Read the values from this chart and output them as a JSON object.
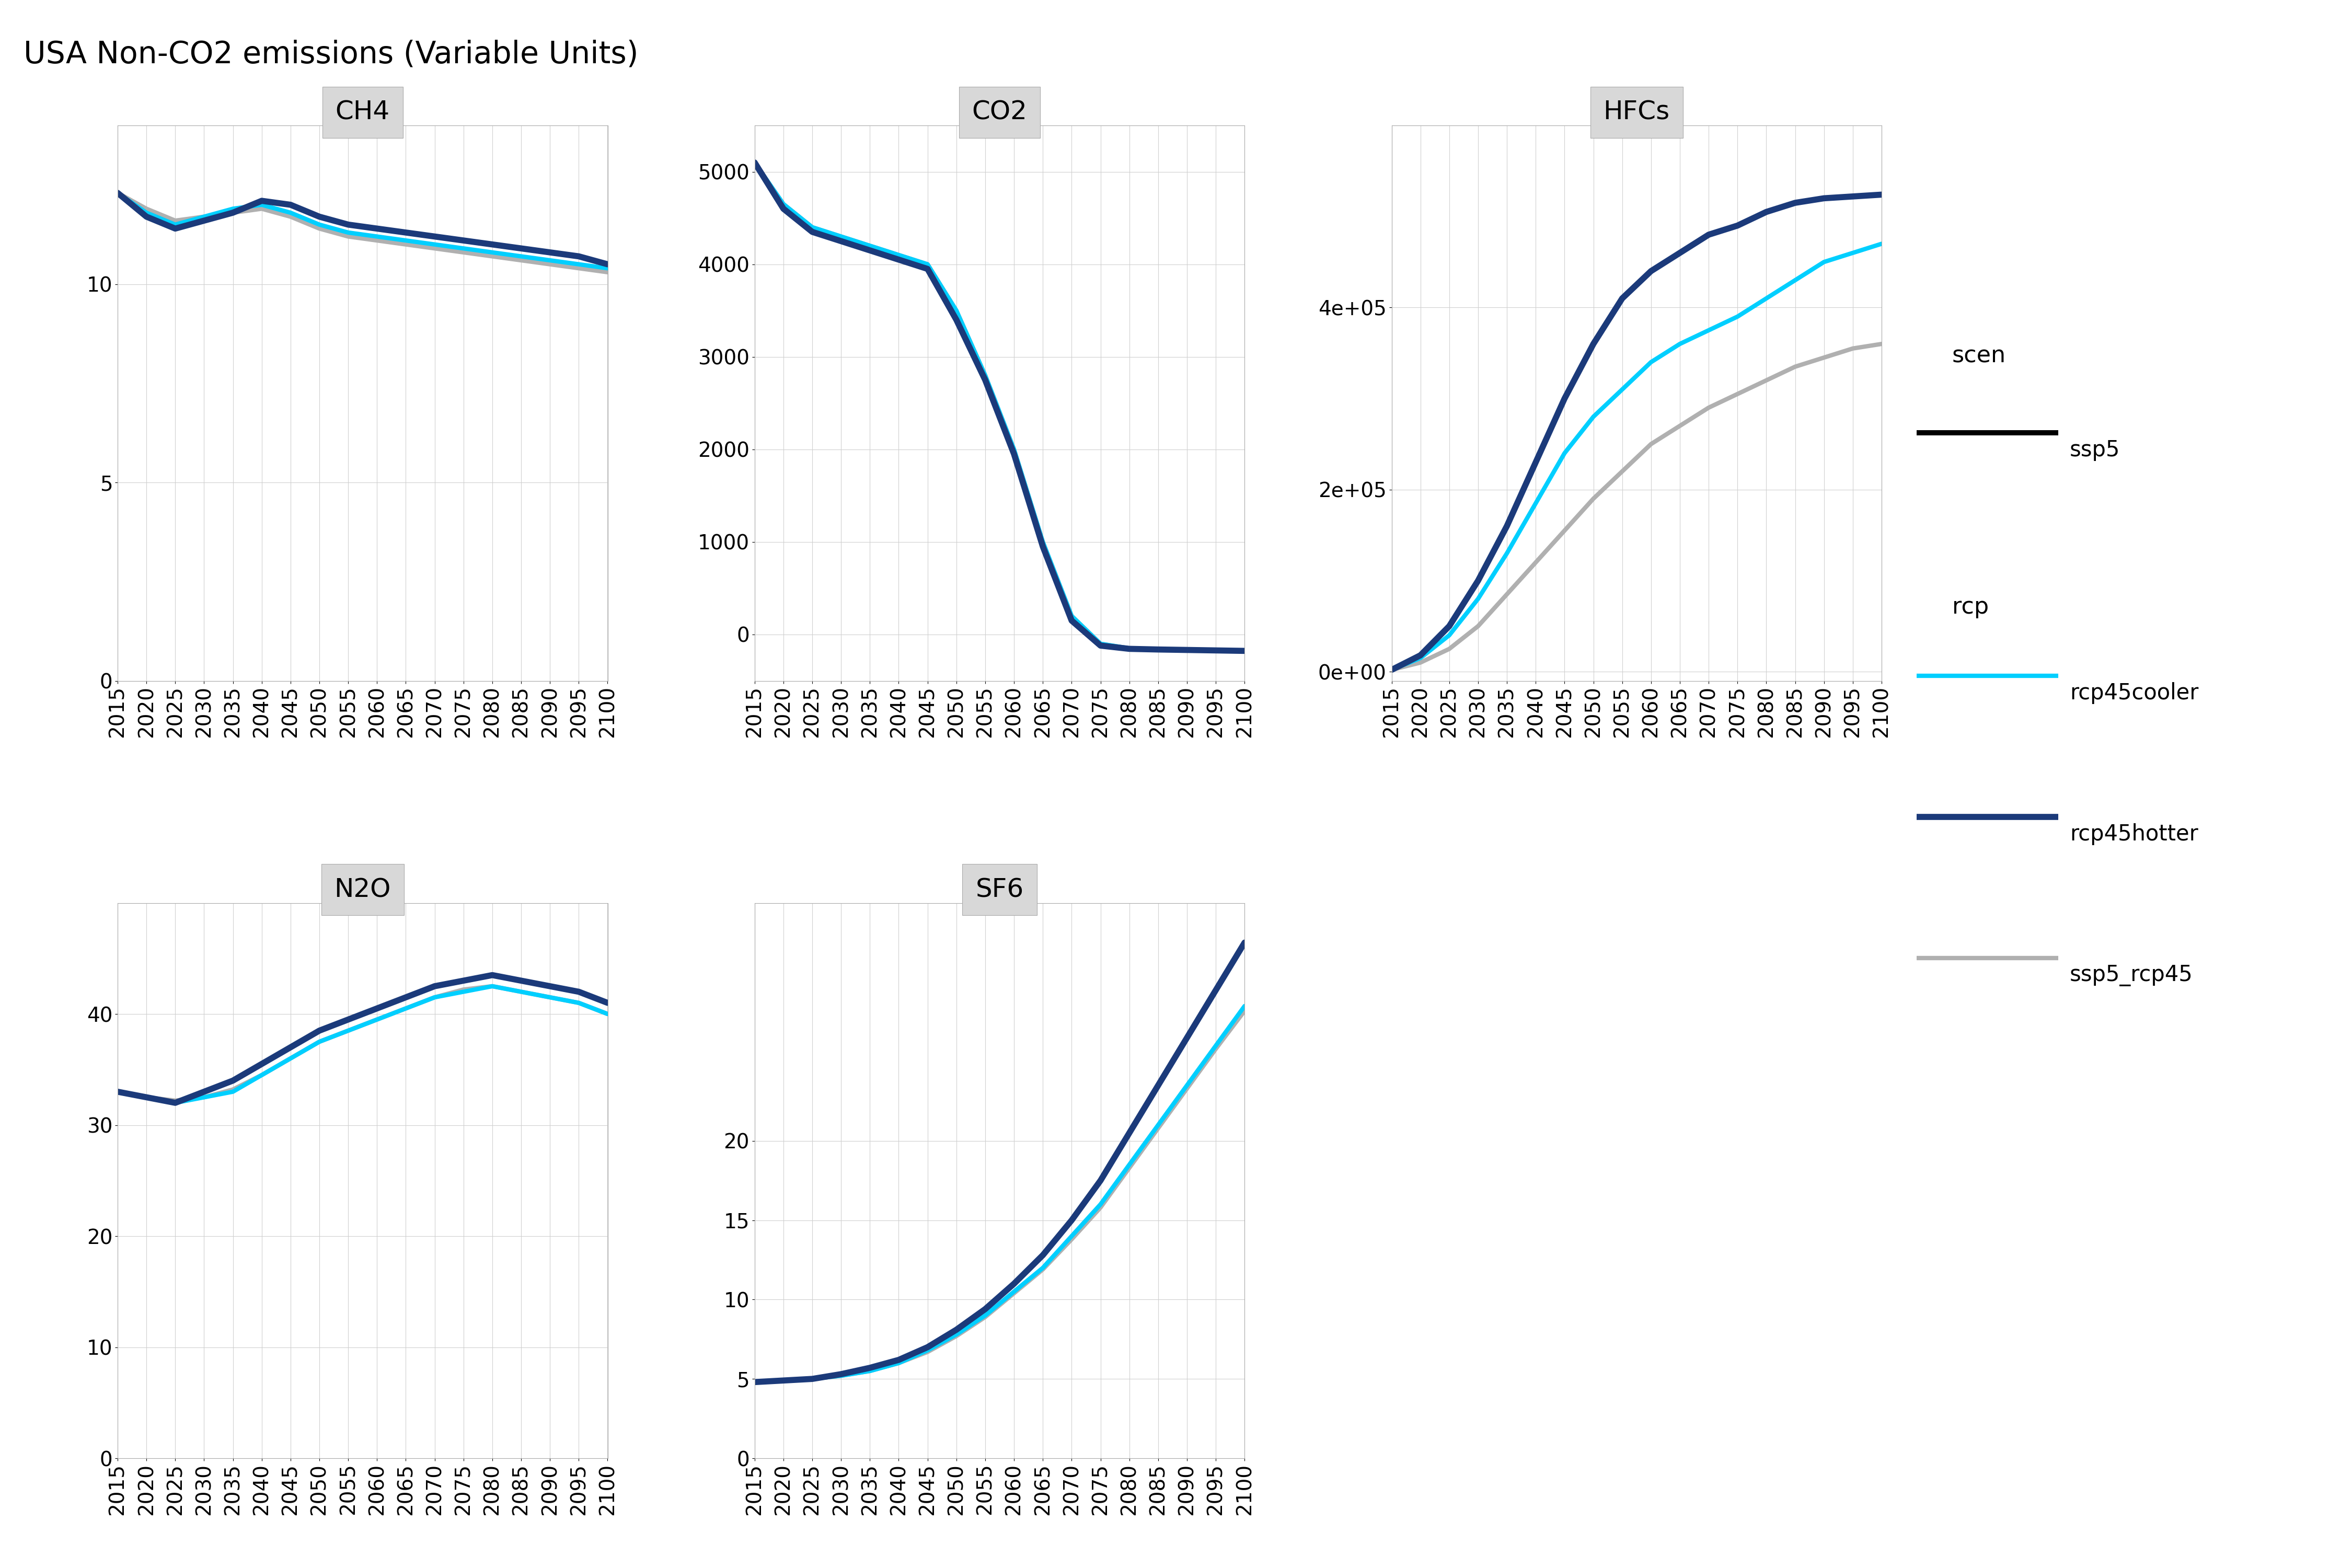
{
  "title": "USA Non-CO2 emissions (Variable Units)",
  "years": [
    2015,
    2020,
    2025,
    2030,
    2035,
    2040,
    2045,
    2050,
    2055,
    2060,
    2065,
    2070,
    2075,
    2080,
    2085,
    2090,
    2095,
    2100
  ],
  "colors": {
    "rcp45cooler": "#00CFFF",
    "rcp45hotter": "#1B3A7A",
    "ssp5_rcp45": "#B0B0B0"
  },
  "line_width": 6.0,
  "panels": {
    "CH4": {
      "rcp45cooler": [
        12.3,
        11.8,
        11.5,
        11.7,
        11.9,
        12.0,
        11.8,
        11.5,
        11.3,
        11.2,
        11.1,
        11.0,
        10.9,
        10.8,
        10.7,
        10.6,
        10.5,
        10.4
      ],
      "rcp45hotter": [
        12.3,
        11.7,
        11.4,
        11.6,
        11.8,
        12.1,
        12.0,
        11.7,
        11.5,
        11.4,
        11.3,
        11.2,
        11.1,
        11.0,
        10.9,
        10.8,
        10.7,
        10.5
      ],
      "ssp5_rcp45": [
        12.3,
        11.9,
        11.6,
        11.7,
        11.8,
        11.9,
        11.7,
        11.4,
        11.2,
        11.1,
        11.0,
        10.9,
        10.8,
        10.7,
        10.6,
        10.5,
        10.4,
        10.3
      ],
      "ylim": [
        0,
        14
      ],
      "yticks": [
        0,
        5,
        10
      ]
    },
    "CO2": {
      "rcp45cooler": [
        5100,
        4650,
        4400,
        4300,
        4200,
        4100,
        4000,
        3500,
        2800,
        2000,
        1000,
        200,
        -100,
        -150,
        -160,
        -165,
        -170,
        -175
      ],
      "rcp45hotter": [
        5100,
        4600,
        4350,
        4250,
        4150,
        4050,
        3950,
        3400,
        2750,
        1950,
        950,
        150,
        -120,
        -155,
        -162,
        -167,
        -172,
        -177
      ],
      "ssp5_rcp45": [
        5100,
        4650,
        4400,
        4300,
        4200,
        4100,
        4000,
        3500,
        2800,
        2000,
        1000,
        200,
        -100,
        -150,
        -160,
        -165,
        -170,
        -175
      ],
      "ylim": [
        -500,
        5500
      ],
      "yticks": [
        0,
        1000,
        2000,
        3000,
        4000,
        5000
      ]
    },
    "HFCs": {
      "rcp45cooler": [
        2000,
        15000,
        40000,
        80000,
        130000,
        185000,
        240000,
        280000,
        310000,
        340000,
        360000,
        375000,
        390000,
        410000,
        430000,
        450000,
        460000,
        470000
      ],
      "rcp45hotter": [
        2000,
        18000,
        50000,
        100000,
        160000,
        230000,
        300000,
        360000,
        410000,
        440000,
        460000,
        480000,
        490000,
        505000,
        515000,
        520000,
        522000,
        524000
      ],
      "ssp5_rcp45": [
        2000,
        10000,
        25000,
        50000,
        85000,
        120000,
        155000,
        190000,
        220000,
        250000,
        270000,
        290000,
        305000,
        320000,
        335000,
        345000,
        355000,
        360000
      ],
      "ylim": [
        -10000,
        600000
      ],
      "yticks": [
        0,
        200000,
        400000
      ]
    },
    "N2O": {
      "rcp45cooler": [
        33.0,
        32.5,
        32.0,
        32.5,
        33.0,
        34.5,
        36.0,
        37.5,
        38.5,
        39.5,
        40.5,
        41.5,
        42.0,
        42.5,
        42.0,
        41.5,
        41.0,
        40.0
      ],
      "rcp45hotter": [
        33.0,
        32.5,
        32.0,
        33.0,
        34.0,
        35.5,
        37.0,
        38.5,
        39.5,
        40.5,
        41.5,
        42.5,
        43.0,
        43.5,
        43.0,
        42.5,
        42.0,
        41.0
      ],
      "ssp5_rcp45": [
        33.0,
        32.5,
        32.2,
        32.5,
        33.2,
        34.5,
        36.0,
        37.5,
        38.5,
        39.5,
        40.5,
        41.5,
        42.2,
        42.5,
        42.0,
        41.5,
        41.0,
        40.0
      ],
      "ylim": [
        0,
        50
      ],
      "yticks": [
        0,
        10,
        20,
        30,
        40
      ]
    },
    "SF6": {
      "rcp45cooler": [
        4.8,
        4.9,
        5.0,
        5.2,
        5.5,
        6.0,
        6.8,
        7.8,
        9.0,
        10.5,
        12.0,
        14.0,
        16.0,
        18.5,
        21.0,
        23.5,
        26.0,
        28.5
      ],
      "rcp45hotter": [
        4.8,
        4.9,
        5.0,
        5.3,
        5.7,
        6.2,
        7.0,
        8.1,
        9.4,
        11.0,
        12.8,
        15.0,
        17.5,
        20.5,
        23.5,
        26.5,
        29.5,
        32.5
      ],
      "ssp5_rcp45": [
        4.8,
        4.9,
        5.0,
        5.2,
        5.5,
        6.0,
        6.7,
        7.7,
        8.9,
        10.4,
        11.9,
        13.8,
        15.8,
        18.3,
        20.8,
        23.3,
        25.8,
        28.2
      ],
      "ylim": [
        0,
        35
      ],
      "yticks": [
        0,
        5,
        10,
        15,
        20
      ]
    }
  },
  "panel_order": [
    "CH4",
    "CO2",
    "HFCs",
    "N2O",
    "SF6"
  ],
  "bg_color": "#FFFFFF",
  "panel_bg": "#FFFFFF",
  "grid_color": "#D0D0D0",
  "title_fontsize": 42,
  "label_fontsize": 36,
  "tick_fontsize": 28,
  "legend_fontsize": 32
}
